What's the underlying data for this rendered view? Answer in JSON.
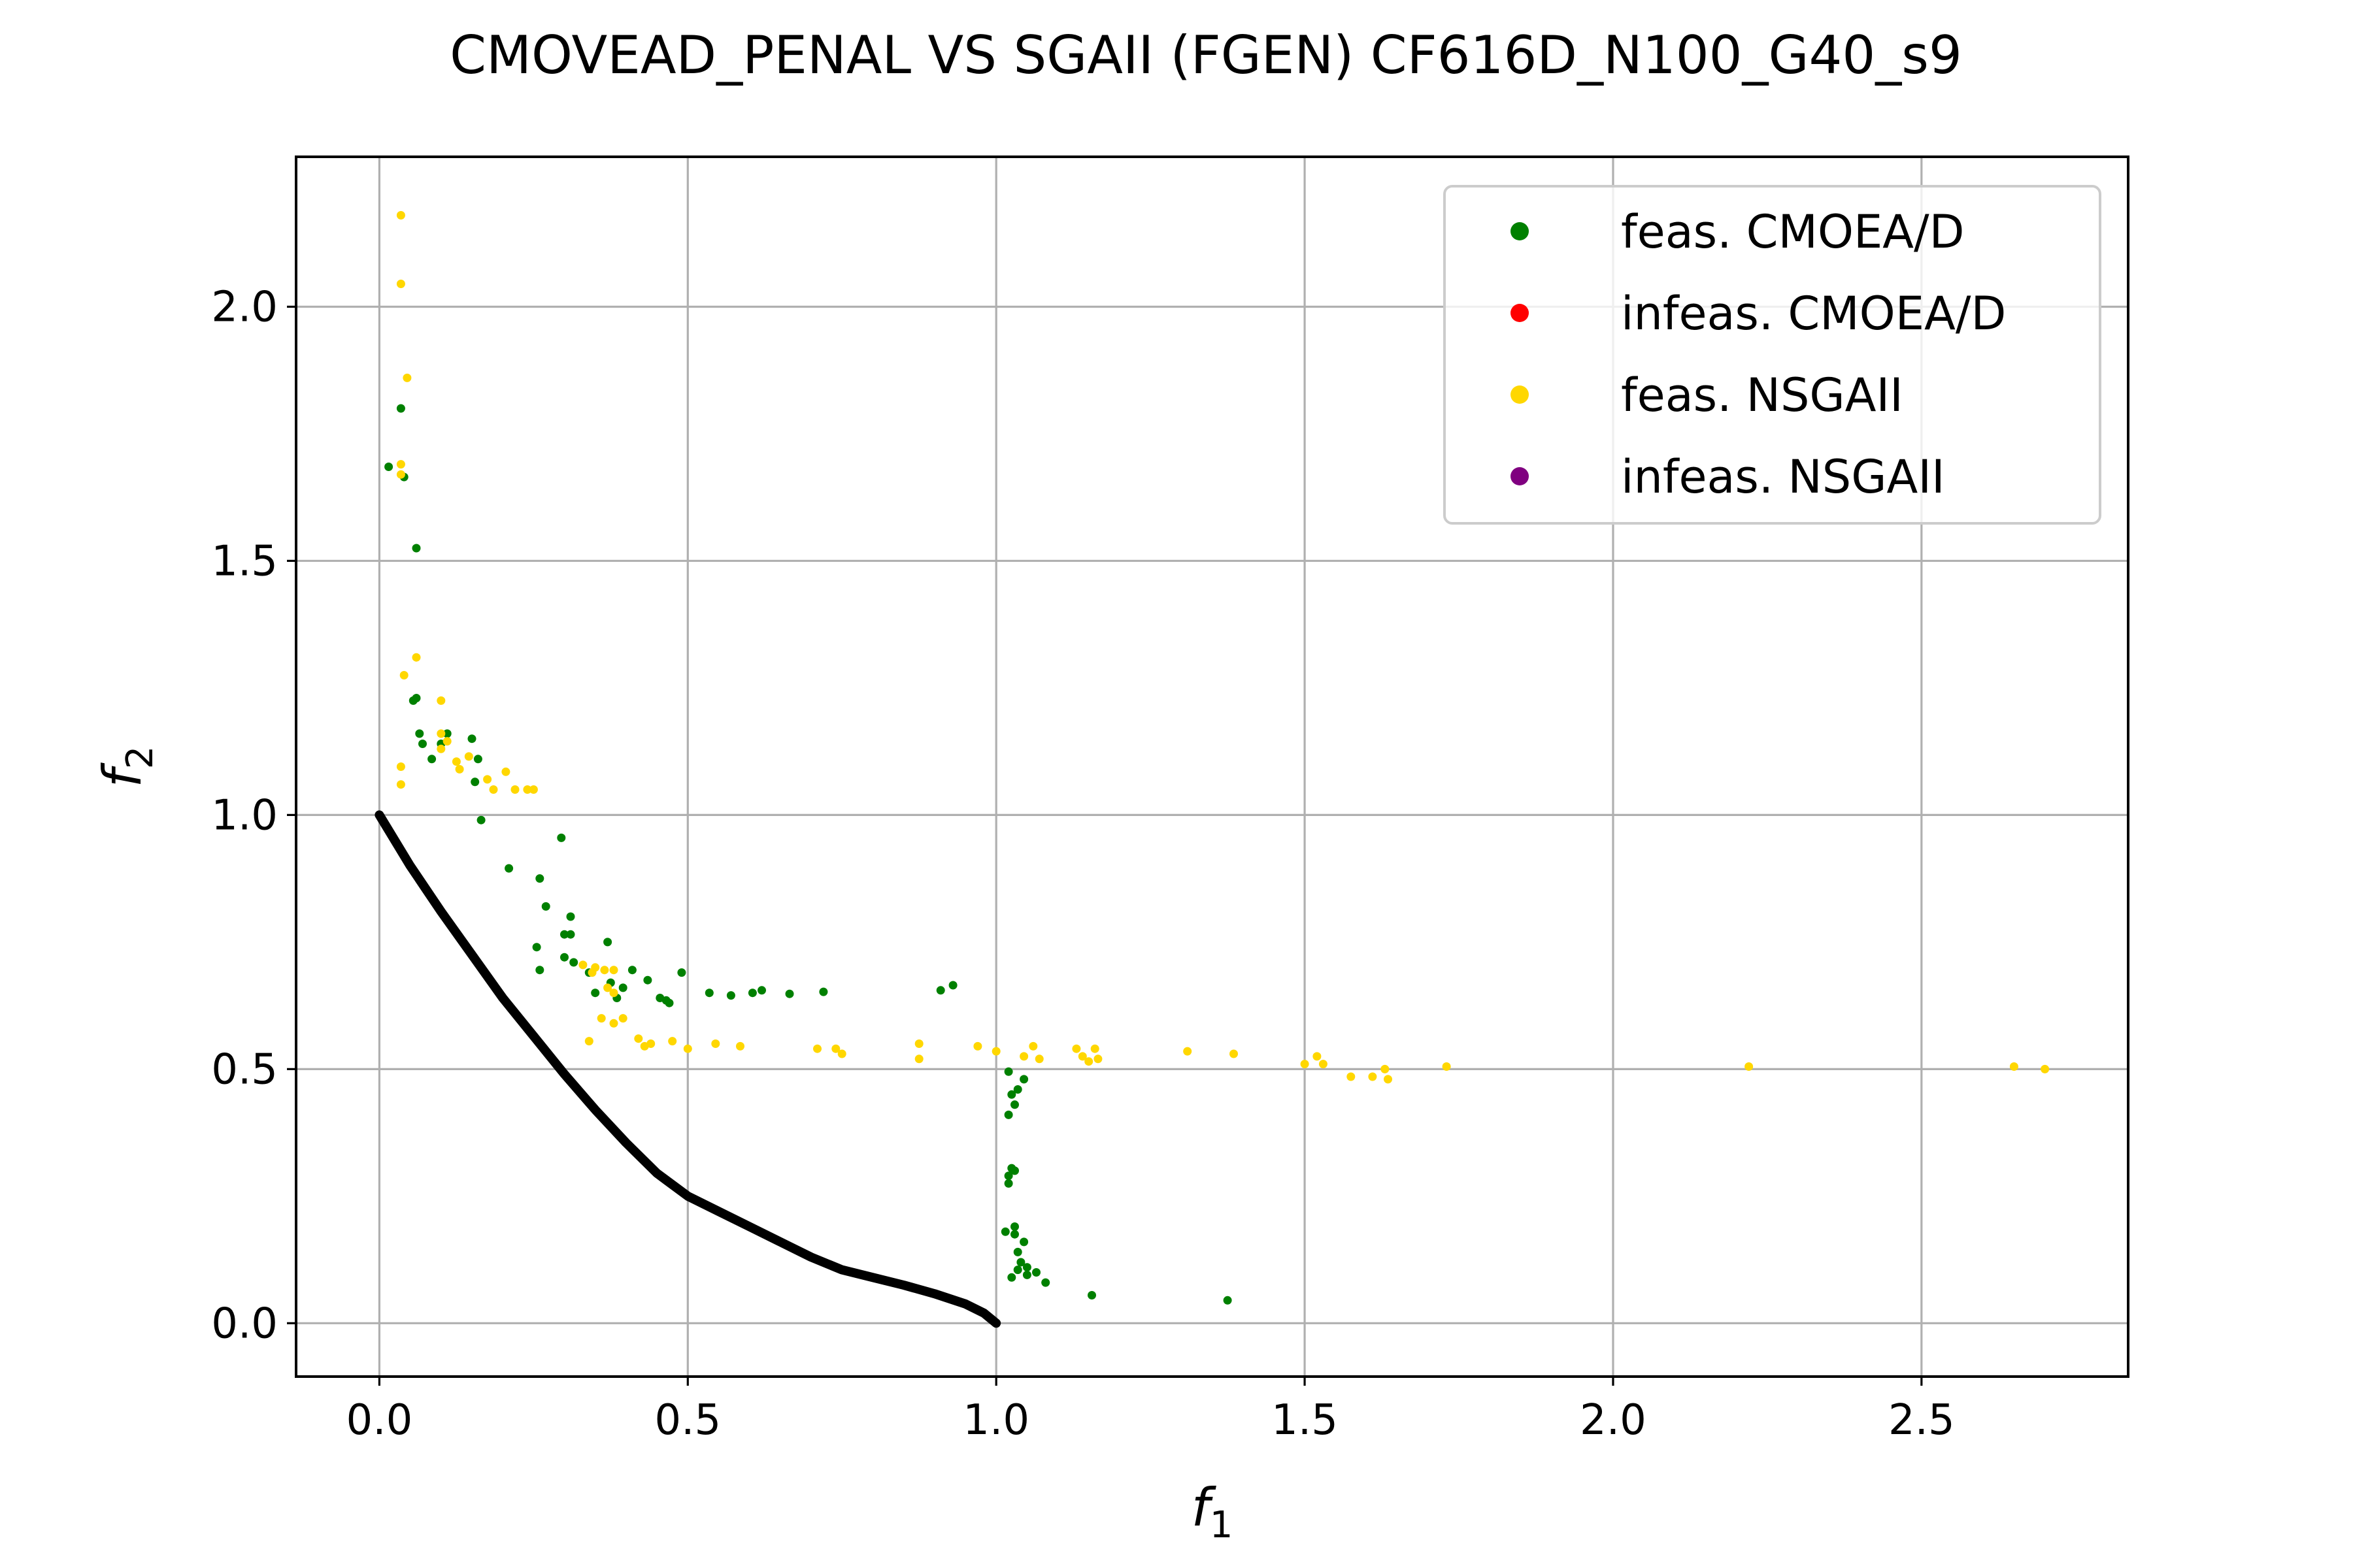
{
  "chart_data": {
    "type": "scatter",
    "title": "CMOVEAD_PENAL VS SGAII (FGEN) CF616D_N100_G40_s9",
    "xlabel": {
      "base": "f",
      "sub": "1"
    },
    "ylabel": {
      "base": "f",
      "sub": "2"
    },
    "xlim": [
      -0.135,
      2.835
    ],
    "ylim": [
      -0.105,
      2.295
    ],
    "xticks": [
      0.0,
      0.5,
      1.0,
      1.5,
      2.0,
      2.5
    ],
    "xtick_labels": [
      "0.0",
      "0.5",
      "1.0",
      "1.5",
      "2.0",
      "2.5"
    ],
    "yticks": [
      0.0,
      0.5,
      1.0,
      1.5,
      2.0
    ],
    "ytick_labels": [
      "0.0",
      "0.5",
      "1.0",
      "1.5",
      "2.0"
    ],
    "grid": true,
    "legend_position": "top-right",
    "pareto_front": {
      "color": "#000000",
      "x": [
        0.0,
        0.05,
        0.1,
        0.15,
        0.2,
        0.25,
        0.3,
        0.35,
        0.4,
        0.45,
        0.5,
        0.55,
        0.6,
        0.65,
        0.7,
        0.75,
        0.8,
        0.85,
        0.9,
        0.95,
        0.98,
        1.0
      ],
      "y": [
        1.0,
        0.9,
        0.81,
        0.725,
        0.64,
        0.565,
        0.49,
        0.42,
        0.355,
        0.295,
        0.25,
        0.22,
        0.19,
        0.16,
        0.13,
        0.105,
        0.09,
        0.075,
        0.058,
        0.038,
        0.02,
        0.0
      ]
    },
    "series": [
      {
        "name": "feas. CMOEA/D",
        "color": "#008000",
        "points": [
          [
            0.015,
            1.685
          ],
          [
            0.035,
            1.8
          ],
          [
            0.04,
            1.665
          ],
          [
            0.06,
            1.525
          ],
          [
            0.055,
            1.225
          ],
          [
            0.06,
            1.23
          ],
          [
            0.065,
            1.16
          ],
          [
            0.07,
            1.14
          ],
          [
            0.085,
            1.11
          ],
          [
            0.1,
            1.14
          ],
          [
            0.11,
            1.16
          ],
          [
            0.15,
            1.15
          ],
          [
            0.16,
            1.11
          ],
          [
            0.155,
            1.065
          ],
          [
            0.165,
            0.99
          ],
          [
            0.21,
            0.895
          ],
          [
            0.26,
            0.875
          ],
          [
            0.27,
            0.82
          ],
          [
            0.295,
            0.955
          ],
          [
            0.3,
            0.765
          ],
          [
            0.31,
            0.8
          ],
          [
            0.31,
            0.765
          ],
          [
            0.255,
            0.74
          ],
          [
            0.26,
            0.695
          ],
          [
            0.3,
            0.72
          ],
          [
            0.315,
            0.71
          ],
          [
            0.34,
            0.69
          ],
          [
            0.35,
            0.65
          ],
          [
            0.37,
            0.75
          ],
          [
            0.375,
            0.67
          ],
          [
            0.385,
            0.64
          ],
          [
            0.395,
            0.66
          ],
          [
            0.41,
            0.695
          ],
          [
            0.435,
            0.675
          ],
          [
            0.455,
            0.64
          ],
          [
            0.465,
            0.635
          ],
          [
            0.47,
            0.63
          ],
          [
            0.49,
            0.69
          ],
          [
            0.535,
            0.65
          ],
          [
            0.57,
            0.645
          ],
          [
            0.605,
            0.65
          ],
          [
            0.62,
            0.655
          ],
          [
            0.665,
            0.648
          ],
          [
            0.72,
            0.652
          ],
          [
            0.91,
            0.655
          ],
          [
            0.93,
            0.665
          ],
          [
            1.02,
            0.495
          ],
          [
            1.025,
            0.45
          ],
          [
            1.03,
            0.43
          ],
          [
            1.02,
            0.41
          ],
          [
            1.045,
            0.48
          ],
          [
            1.035,
            0.46
          ],
          [
            1.025,
            0.305
          ],
          [
            1.02,
            0.29
          ],
          [
            1.03,
            0.3
          ],
          [
            1.02,
            0.275
          ],
          [
            1.015,
            0.18
          ],
          [
            1.03,
            0.19
          ],
          [
            1.03,
            0.175
          ],
          [
            1.045,
            0.16
          ],
          [
            1.035,
            0.14
          ],
          [
            1.04,
            0.12
          ],
          [
            1.035,
            0.105
          ],
          [
            1.025,
            0.09
          ],
          [
            1.05,
            0.095
          ],
          [
            1.05,
            0.11
          ],
          [
            1.065,
            0.1
          ],
          [
            1.08,
            0.08
          ],
          [
            1.155,
            0.055
          ],
          [
            1.375,
            0.045
          ]
        ]
      },
      {
        "name": "infeas. CMOEA/D",
        "color": "#ff0000",
        "points": []
      },
      {
        "name": "feas. NSGAII",
        "color": "#ffd700",
        "points": [
          [
            0.035,
            2.18
          ],
          [
            0.035,
            2.045
          ],
          [
            0.045,
            1.86
          ],
          [
            0.035,
            1.69
          ],
          [
            0.035,
            1.67
          ],
          [
            0.06,
            1.31
          ],
          [
            0.04,
            1.275
          ],
          [
            0.035,
            1.095
          ],
          [
            0.035,
            1.06
          ],
          [
            0.1,
            1.225
          ],
          [
            0.1,
            1.16
          ],
          [
            0.11,
            1.145
          ],
          [
            0.1,
            1.13
          ],
          [
            0.125,
            1.105
          ],
          [
            0.13,
            1.09
          ],
          [
            0.145,
            1.115
          ],
          [
            0.175,
            1.07
          ],
          [
            0.185,
            1.05
          ],
          [
            0.205,
            1.085
          ],
          [
            0.22,
            1.05
          ],
          [
            0.24,
            1.05
          ],
          [
            0.25,
            1.05
          ],
          [
            0.33,
            0.705
          ],
          [
            0.35,
            0.7
          ],
          [
            0.345,
            0.69
          ],
          [
            0.365,
            0.695
          ],
          [
            0.38,
            0.695
          ],
          [
            0.38,
            0.65
          ],
          [
            0.37,
            0.66
          ],
          [
            0.34,
            0.555
          ],
          [
            0.36,
            0.6
          ],
          [
            0.38,
            0.59
          ],
          [
            0.395,
            0.6
          ],
          [
            0.42,
            0.56
          ],
          [
            0.43,
            0.545
          ],
          [
            0.44,
            0.55
          ],
          [
            0.475,
            0.555
          ],
          [
            0.5,
            0.54
          ],
          [
            0.545,
            0.55
          ],
          [
            0.585,
            0.545
          ],
          [
            0.71,
            0.54
          ],
          [
            0.74,
            0.54
          ],
          [
            0.75,
            0.53
          ],
          [
            0.875,
            0.55
          ],
          [
            0.875,
            0.52
          ],
          [
            0.97,
            0.545
          ],
          [
            1.0,
            0.535
          ],
          [
            1.045,
            0.525
          ],
          [
            1.06,
            0.545
          ],
          [
            1.07,
            0.52
          ],
          [
            1.13,
            0.54
          ],
          [
            1.14,
            0.525
          ],
          [
            1.15,
            0.515
          ],
          [
            1.16,
            0.54
          ],
          [
            1.165,
            0.52
          ],
          [
            1.31,
            0.535
          ],
          [
            1.385,
            0.53
          ],
          [
            1.5,
            0.51
          ],
          [
            1.52,
            0.525
          ],
          [
            1.53,
            0.51
          ],
          [
            1.575,
            0.485
          ],
          [
            1.61,
            0.485
          ],
          [
            1.63,
            0.5
          ],
          [
            1.635,
            0.48
          ],
          [
            1.73,
            0.505
          ],
          [
            2.22,
            0.505
          ],
          [
            2.65,
            0.505
          ],
          [
            2.7,
            0.5
          ]
        ]
      },
      {
        "name": "infeas. NSGAII",
        "color": "#800080",
        "points": []
      }
    ]
  }
}
